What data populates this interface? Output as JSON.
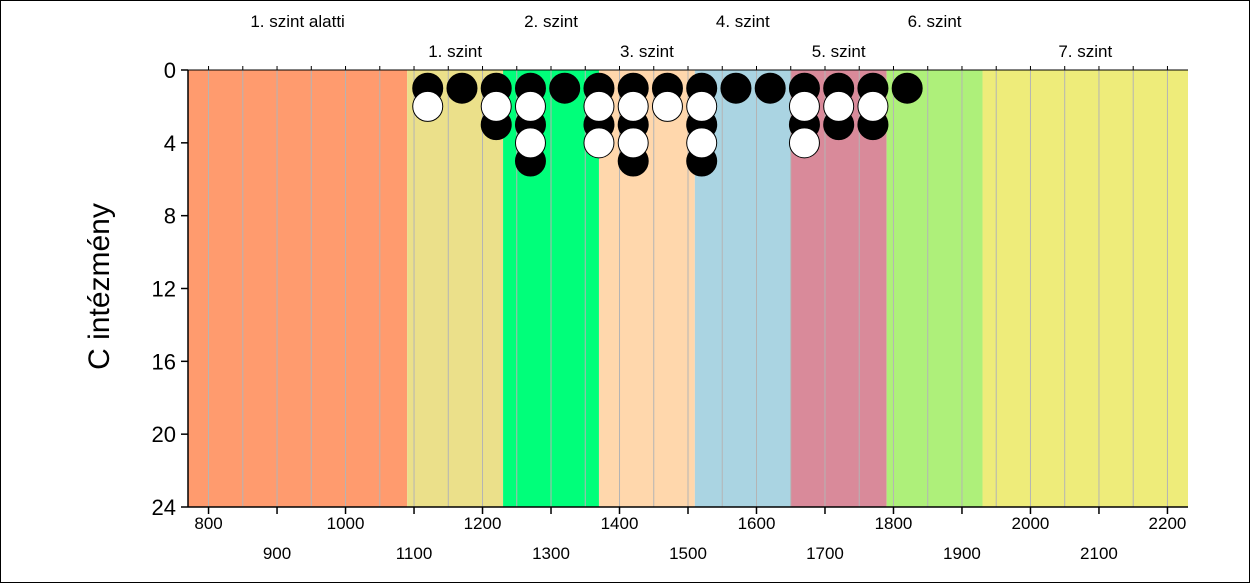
{
  "chart_data": {
    "type": "scatter",
    "ylabel": "C intézmény",
    "xlim": [
      770,
      2230
    ],
    "ylim": [
      0,
      24
    ],
    "y_inverted": true,
    "y_ticks": [
      0,
      4,
      8,
      12,
      16,
      20,
      24
    ],
    "x_ticks_upper": [
      800,
      1000,
      1200,
      1400,
      1600,
      1800,
      2000,
      2200
    ],
    "x_ticks_lower": [
      900,
      1100,
      1300,
      1500,
      1700,
      1900,
      2100
    ],
    "grid_x_step": 50,
    "bands": [
      {
        "label": "1. szint alatti",
        "from": 770,
        "to": 1090,
        "color": "#ff9b6e",
        "label_row": "top"
      },
      {
        "label": "1. szint",
        "from": 1090,
        "to": 1230,
        "color": "#ebe08a",
        "label_row": "bottom"
      },
      {
        "label": "2. szint",
        "from": 1230,
        "to": 1370,
        "color": "#00ff7a",
        "label_row": "top"
      },
      {
        "label": "3. szint",
        "from": 1370,
        "to": 1510,
        "color": "#ffd7ac",
        "label_row": "bottom"
      },
      {
        "label": "4. szint",
        "from": 1510,
        "to": 1650,
        "color": "#aad4e2",
        "label_row": "top"
      },
      {
        "label": "5. szint",
        "from": 1650,
        "to": 1790,
        "color": "#d98a9a",
        "label_row": "bottom"
      },
      {
        "label": "6. szint",
        "from": 1790,
        "to": 1930,
        "color": "#aef07a",
        "label_row": "top"
      },
      {
        "label": "7. szint",
        "from": 1930,
        "to": 2230,
        "color": "#eeec7a",
        "label_row": "bottom"
      }
    ],
    "series": [
      {
        "color": "#000000",
        "points": [
          [
            1120,
            1
          ],
          [
            1170,
            1
          ],
          [
            1220,
            1
          ],
          [
            1220,
            3
          ],
          [
            1270,
            1
          ],
          [
            1270,
            3
          ],
          [
            1270,
            5
          ],
          [
            1320,
            1
          ],
          [
            1370,
            1
          ],
          [
            1370,
            3
          ],
          [
            1420,
            1
          ],
          [
            1420,
            3
          ],
          [
            1420,
            5
          ],
          [
            1470,
            1
          ],
          [
            1520,
            1
          ],
          [
            1520,
            3
          ],
          [
            1520,
            5
          ],
          [
            1570,
            1
          ],
          [
            1620,
            1
          ],
          [
            1670,
            1
          ],
          [
            1670,
            3
          ],
          [
            1720,
            1
          ],
          [
            1720,
            3
          ],
          [
            1770,
            1
          ],
          [
            1770,
            3
          ],
          [
            1820,
            1
          ]
        ]
      },
      {
        "color": "#ffffff",
        "points": [
          [
            1120,
            2
          ],
          [
            1220,
            2
          ],
          [
            1270,
            2
          ],
          [
            1270,
            4
          ],
          [
            1370,
            2
          ],
          [
            1370,
            4
          ],
          [
            1420,
            2
          ],
          [
            1420,
            4
          ],
          [
            1470,
            2
          ],
          [
            1520,
            2
          ],
          [
            1520,
            4
          ],
          [
            1670,
            2
          ],
          [
            1670,
            4
          ],
          [
            1720,
            2
          ],
          [
            1770,
            2
          ]
        ]
      }
    ]
  }
}
